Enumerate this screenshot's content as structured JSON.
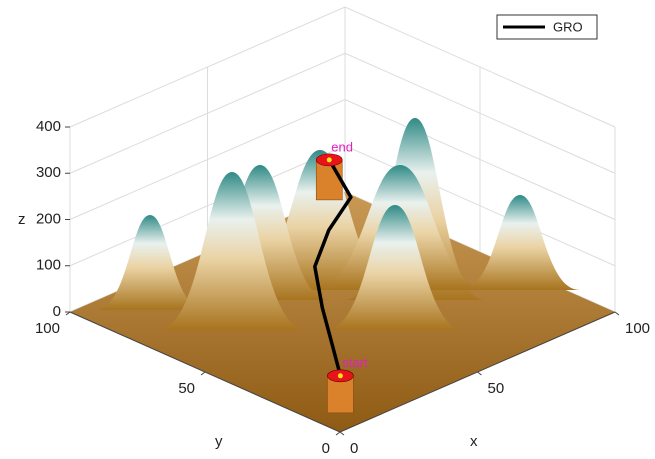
{
  "chart_data": {
    "type": "surface3d",
    "xlabel": "x",
    "ylabel": "y",
    "zlabel": "z",
    "xlim": [
      0,
      100
    ],
    "ylim": [
      0,
      100
    ],
    "zlim": [
      0,
      400
    ],
    "xticks": [
      0,
      50,
      100
    ],
    "yticks": [
      0,
      50,
      100
    ],
    "zticks": [
      0,
      100,
      200,
      300,
      400
    ],
    "grid": true,
    "legend": "upper right",
    "series": [
      {
        "name": "GRO",
        "color": "#000000",
        "x": [
          8,
          15,
          25,
          35,
          45,
          55,
          55
        ],
        "y": [
          8,
          18,
          32,
          45,
          50,
          52,
          60
        ],
        "z": [
          80,
          100,
          120,
          150,
          190,
          230,
          290
        ]
      }
    ],
    "annotations": [
      {
        "text": "start",
        "x": 8,
        "y": 8,
        "z": 80
      },
      {
        "text": "end",
        "x": 55,
        "y": 60,
        "z": 290
      }
    ]
  }
}
